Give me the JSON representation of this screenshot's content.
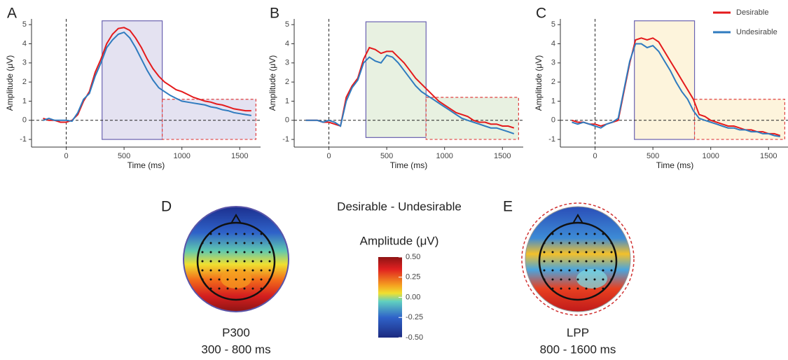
{
  "chart_data": [
    {
      "type": "line",
      "panel": "A",
      "xlabel": "Time (ms)",
      "ylabel": "Amplitude (μV)",
      "x": [
        -200,
        -150,
        -100,
        -50,
        0,
        50,
        100,
        150,
        200,
        250,
        300,
        350,
        400,
        450,
        500,
        550,
        600,
        650,
        700,
        750,
        800,
        850,
        900,
        950,
        1000,
        1050,
        1100,
        1150,
        1200,
        1250,
        1300,
        1350,
        1400,
        1450,
        1500,
        1550,
        1600
      ],
      "series": [
        {
          "name": "Desirable",
          "color": "#e41a1c",
          "values": [
            0.1,
            0,
            0,
            -0.1,
            -0.1,
            0,
            0.3,
            1,
            1.5,
            2.5,
            3.2,
            4.0,
            4.5,
            4.8,
            4.85,
            4.7,
            4.3,
            3.8,
            3.2,
            2.7,
            2.3,
            2.0,
            1.8,
            1.6,
            1.5,
            1.35,
            1.2,
            1.1,
            1.0,
            0.95,
            0.85,
            0.8,
            0.7,
            0.6,
            0.55,
            0.5,
            0.5
          ]
        },
        {
          "name": "Undesirable",
          "color": "#2f7bbf",
          "values": [
            0,
            0.1,
            0,
            0,
            0,
            -0.05,
            0.4,
            1.1,
            1.4,
            2.3,
            3.0,
            3.8,
            4.2,
            4.5,
            4.6,
            4.3,
            3.8,
            3.2,
            2.6,
            2.1,
            1.7,
            1.5,
            1.3,
            1.15,
            1.0,
            0.95,
            0.9,
            0.85,
            0.8,
            0.7,
            0.65,
            0.55,
            0.5,
            0.4,
            0.35,
            0.3,
            0.25
          ]
        }
      ],
      "windows": [
        {
          "x": [
            310,
            830
          ],
          "y": [
            -1,
            5.2
          ],
          "color": "#e4e2f1",
          "edge": "#6a62b0",
          "style": "solid"
        },
        {
          "x": [
            830,
            1640
          ],
          "y": [
            -1,
            1.1
          ],
          "color": "#e4e2f1",
          "edge": "#e04040",
          "style": "dashed"
        }
      ],
      "ref_x": 0,
      "ref_y": 0,
      "xlim": [
        -300,
        1680
      ],
      "ylim": [
        -1.4,
        5.3
      ],
      "xticks": [
        0,
        500,
        1000,
        1500
      ],
      "yticks": [
        -1,
        0,
        1,
        2,
        3,
        4,
        5
      ],
      "legend": false
    },
    {
      "type": "line",
      "panel": "B",
      "xlabel": "Time (ms)",
      "ylabel": "Amplitude (μV)",
      "x": [
        -200,
        -150,
        -100,
        -50,
        0,
        50,
        100,
        150,
        200,
        250,
        300,
        350,
        400,
        450,
        500,
        550,
        600,
        650,
        700,
        750,
        800,
        850,
        900,
        950,
        1000,
        1050,
        1100,
        1150,
        1200,
        1250,
        1300,
        1350,
        1400,
        1450,
        1500,
        1550,
        1600
      ],
      "series": [
        {
          "name": "Desirable",
          "color": "#e41a1c",
          "values": [
            0,
            0,
            0,
            -0.1,
            -0.1,
            -0.2,
            -0.3,
            1.2,
            1.8,
            2.2,
            3.2,
            3.8,
            3.7,
            3.5,
            3.6,
            3.6,
            3.3,
            3.0,
            2.6,
            2.2,
            1.9,
            1.6,
            1.3,
            1.0,
            0.8,
            0.6,
            0.4,
            0.3,
            0.2,
            0,
            -0.1,
            -0.1,
            -0.2,
            -0.2,
            -0.3,
            -0.3,
            -0.4
          ]
        },
        {
          "name": "Undesirable",
          "color": "#2f7bbf",
          "values": [
            0,
            0,
            0,
            -0.1,
            0,
            -0.1,
            -0.3,
            1.0,
            1.7,
            2.1,
            3.0,
            3.3,
            3.1,
            3.0,
            3.4,
            3.3,
            3.0,
            2.6,
            2.2,
            1.8,
            1.5,
            1.3,
            1.1,
            0.9,
            0.7,
            0.5,
            0.3,
            0.1,
            0,
            -0.1,
            -0.2,
            -0.3,
            -0.4,
            -0.4,
            -0.5,
            -0.6,
            -0.7
          ]
        }
      ],
      "windows": [
        {
          "x": [
            320,
            840
          ],
          "y": [
            -0.9,
            5.15
          ],
          "color": "#e8f1e1",
          "edge": "#6a62b0",
          "style": "solid"
        },
        {
          "x": [
            840,
            1640
          ],
          "y": [
            -1,
            1.2
          ],
          "color": "#e8f1e1",
          "edge": "#e04040",
          "style": "dashed"
        }
      ],
      "ref_x": 0,
      "ref_y": 0,
      "xlim": [
        -300,
        1680
      ],
      "ylim": [
        -1.4,
        5.3
      ],
      "xticks": [
        0,
        500,
        1000,
        1500
      ],
      "yticks": [
        -1,
        0,
        1,
        2,
        3,
        4,
        5
      ],
      "legend": false
    },
    {
      "type": "line",
      "panel": "C",
      "xlabel": "Time (ms)",
      "ylabel": "Amplitude (μV)",
      "x": [
        -200,
        -150,
        -100,
        -50,
        0,
        50,
        100,
        150,
        200,
        250,
        300,
        350,
        400,
        450,
        500,
        550,
        600,
        650,
        700,
        750,
        800,
        850,
        900,
        950,
        1000,
        1050,
        1100,
        1150,
        1200,
        1250,
        1300,
        1350,
        1400,
        1450,
        1500,
        1550,
        1600
      ],
      "series": [
        {
          "name": "Desirable",
          "color": "#e41a1c",
          "values": [
            0,
            -0.1,
            -0.1,
            -0.2,
            -0.2,
            -0.3,
            -0.2,
            -0.1,
            0,
            1.5,
            3.0,
            4.2,
            4.3,
            4.2,
            4.3,
            4.1,
            3.6,
            3.1,
            2.6,
            2.1,
            1.6,
            1.1,
            0.3,
            0.2,
            0,
            -0.1,
            -0.2,
            -0.3,
            -0.3,
            -0.4,
            -0.5,
            -0.5,
            -0.6,
            -0.6,
            -0.7,
            -0.7,
            -0.8
          ]
        },
        {
          "name": "Undesirable",
          "color": "#2f7bbf",
          "values": [
            -0.1,
            -0.2,
            -0.1,
            -0.2,
            -0.3,
            -0.4,
            -0.2,
            -0.1,
            0.1,
            1.6,
            3.1,
            4.0,
            4.0,
            3.8,
            3.9,
            3.6,
            3.1,
            2.6,
            2.0,
            1.5,
            1.1,
            0.5,
            0.1,
            0,
            -0.1,
            -0.2,
            -0.3,
            -0.4,
            -0.4,
            -0.5,
            -0.5,
            -0.6,
            -0.6,
            -0.7,
            -0.7,
            -0.8,
            -0.85
          ]
        }
      ],
      "windows": [
        {
          "x": [
            340,
            860
          ],
          "y": [
            -1,
            5.2
          ],
          "color": "#fdf4dc",
          "edge": "#6a62b0",
          "style": "solid"
        },
        {
          "x": [
            860,
            1640
          ],
          "y": [
            -1,
            1.1
          ],
          "color": "#fdf4dc",
          "edge": "#e04040",
          "style": "dashed"
        }
      ],
      "ref_x": 0,
      "ref_y": 0,
      "xlim": [
        -300,
        1680
      ],
      "ylim": [
        -1.4,
        5.3
      ],
      "xticks": [
        0,
        500,
        1000,
        1500
      ],
      "yticks": [
        -1,
        0,
        1,
        2,
        3,
        4,
        5
      ],
      "legend": "upper right"
    },
    {
      "type": "topomap",
      "panel": "D",
      "component": "P300",
      "window": "300 - 800 ms",
      "ring": "#5a55a8",
      "ring_style": "solid"
    },
    {
      "type": "colorbar",
      "title": "Desirable - Undesirable",
      "label": "Amplitude (μV)",
      "lim": [
        -0.5,
        0.5
      ],
      "ticks": [
        {
          "value": 0.5,
          "label": "0.50"
        },
        0.25,
        {
          "value": 0,
          "label": "0.00"
        },
        -0.25,
        {
          "value": -0.5,
          "label": "-0.50"
        }
      ]
    },
    {
      "type": "topomap",
      "panel": "E",
      "component": "LPP",
      "window": "800 - 1600 ms",
      "ring": "#d03030",
      "ring_style": "dashed"
    }
  ]
}
